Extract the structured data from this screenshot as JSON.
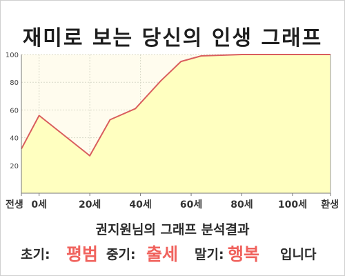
{
  "title": "재미로 보는 당신의 인생 그래프",
  "subtitle": "권지원님의 그래프 분석결과",
  "result": {
    "early_label": "초기:",
    "early_value": "평범",
    "mid_label": "중기:",
    "mid_value": "출세",
    "late_label": "말기:",
    "late_value": "행복",
    "suffix": "입니다"
  },
  "colors": {
    "line": "#d95d5d",
    "fill": "#ffffc0",
    "plot_bg": "#fffcee",
    "highlight": "#f0625d"
  },
  "chart_data": {
    "type": "area",
    "title": "재미로 보는 당신의 인생 그래프",
    "xlabel": "",
    "ylabel": "",
    "ylim": [
      0,
      100
    ],
    "yticks": [
      20,
      40,
      60,
      80,
      100
    ],
    "xlim": [
      -7,
      100
    ],
    "xticks": [
      {
        "x": -7,
        "label": "전생"
      },
      {
        "x": 0,
        "label": "0세"
      },
      {
        "x": 20,
        "label": "20세"
      },
      {
        "x": 40,
        "label": "40세"
      },
      {
        "x": 60,
        "label": "60세"
      },
      {
        "x": 80,
        "label": "80세"
      },
      {
        "x": 100,
        "label": "100세"
      },
      {
        "x": 115,
        "label": "환생"
      }
    ],
    "grid": true,
    "series": [
      {
        "x": [
          -7,
          0,
          20,
          28,
          38,
          48,
          56,
          64,
          80,
          100,
          115
        ],
        "y": [
          32,
          56,
          27,
          53,
          61,
          81,
          95,
          99,
          100,
          100,
          100
        ]
      }
    ]
  }
}
